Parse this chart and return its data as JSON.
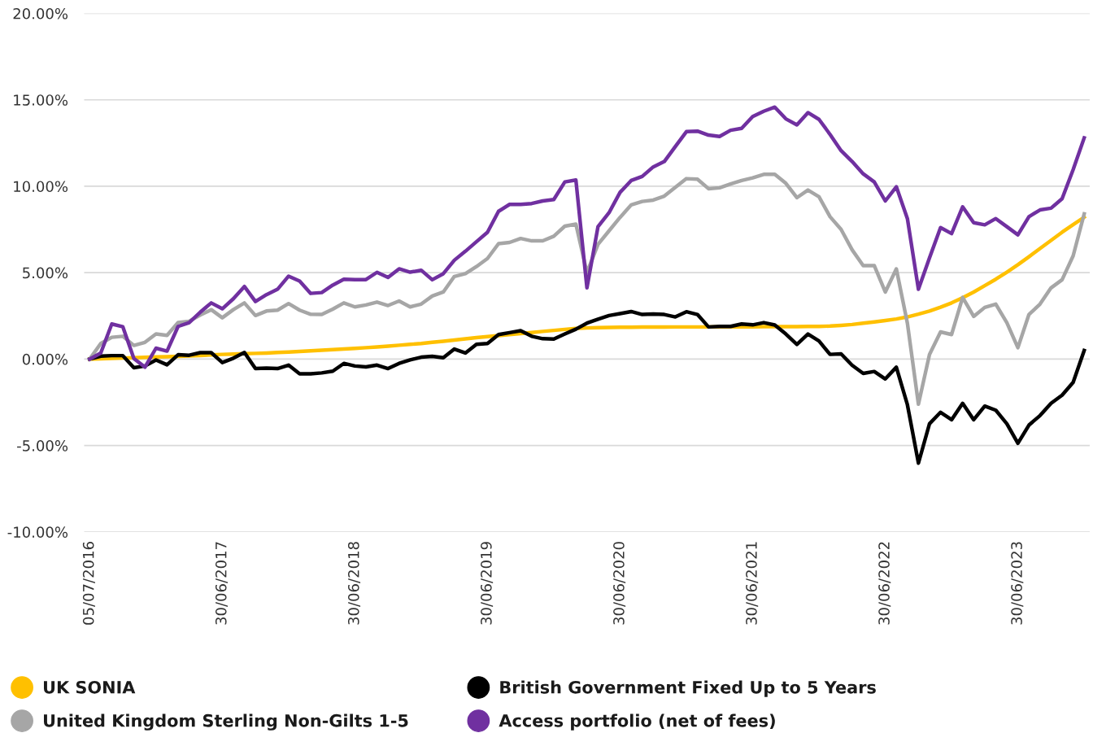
{
  "chart_data": {
    "type": "line",
    "categories": [
      "05/07/2016",
      null,
      null,
      null,
      null,
      null,
      null,
      null,
      null,
      null,
      null,
      null,
      "30/06/2017",
      null,
      null,
      null,
      null,
      null,
      null,
      null,
      null,
      null,
      null,
      null,
      "30/06/2018",
      null,
      null,
      null,
      null,
      null,
      null,
      null,
      null,
      null,
      null,
      null,
      "30/06/2019",
      null,
      null,
      null,
      null,
      null,
      null,
      null,
      null,
      null,
      null,
      null,
      "30/06/2020",
      null,
      null,
      null,
      null,
      null,
      null,
      null,
      null,
      null,
      null,
      null,
      "30/06/2021",
      null,
      null,
      null,
      null,
      null,
      null,
      null,
      null,
      null,
      null,
      null,
      "30/06/2022",
      null,
      null,
      null,
      null,
      null,
      null,
      null,
      null,
      null,
      null,
      null,
      "30/06/2023",
      null,
      null,
      null,
      null,
      null,
      null
    ],
    "ylim": [
      -10,
      20
    ],
    "yticks": [
      {
        "value": -10,
        "label": "-10.00%"
      },
      {
        "value": -5,
        "label": "-5.00%"
      },
      {
        "value": 0,
        "label": "0.00%"
      },
      {
        "value": 5,
        "label": "5.00%"
      },
      {
        "value": 10,
        "label": "10.00%"
      },
      {
        "value": 15,
        "label": "15.00%"
      },
      {
        "value": 20,
        "label": "20.00%"
      }
    ],
    "grid": "y",
    "legend": "bottom",
    "marker": "none",
    "line_style": "solid",
    "series": [
      {
        "name": "UK SONIA",
        "color": "#ffc000",
        "values": [
          0,
          0.02,
          0.04,
          0.06,
          0.08,
          0.1,
          0.12,
          0.14,
          0.16,
          0.18,
          0.21,
          0.24,
          0.27,
          0.29,
          0.31,
          0.33,
          0.35,
          0.38,
          0.41,
          0.44,
          0.48,
          0.51,
          0.55,
          0.58,
          0.62,
          0.66,
          0.7,
          0.75,
          0.8,
          0.85,
          0.9,
          0.97,
          1.03,
          1.1,
          1.17,
          1.24,
          1.3,
          1.36,
          1.42,
          1.48,
          1.54,
          1.6,
          1.66,
          1.72,
          1.77,
          1.8,
          1.82,
          1.83,
          1.84,
          1.84,
          1.85,
          1.85,
          1.85,
          1.86,
          1.86,
          1.86,
          1.86,
          1.87,
          1.87,
          1.87,
          1.87,
          1.88,
          1.88,
          1.88,
          1.88,
          1.89,
          1.89,
          1.91,
          1.95,
          2.0,
          2.08,
          2.15,
          2.23,
          2.32,
          2.44,
          2.6,
          2.78,
          3.0,
          3.25,
          3.55,
          3.88,
          4.25,
          4.62,
          5.03,
          5.46,
          5.92,
          6.4,
          6.87,
          7.34,
          7.78,
          8.21
        ]
      },
      {
        "name": "British Government Fixed Up to 5 Years",
        "color": "#000000",
        "values": [
          0,
          0.17,
          0.2,
          0.2,
          -0.5,
          -0.4,
          -0.05,
          -0.33,
          0.25,
          0.22,
          0.37,
          0.37,
          -0.2,
          0.05,
          0.38,
          -0.55,
          -0.52,
          -0.55,
          -0.35,
          -0.85,
          -0.85,
          -0.8,
          -0.7,
          -0.25,
          -0.4,
          -0.45,
          -0.35,
          -0.55,
          -0.25,
          -0.05,
          0.11,
          0.16,
          0.08,
          0.58,
          0.35,
          0.85,
          0.9,
          1.42,
          1.53,
          1.64,
          1.32,
          1.18,
          1.16,
          1.45,
          1.73,
          2.08,
          2.31,
          2.52,
          2.63,
          2.75,
          2.58,
          2.61,
          2.58,
          2.44,
          2.74,
          2.58,
          1.86,
          1.89,
          1.89,
          2.03,
          1.98,
          2.11,
          1.97,
          1.45,
          0.85,
          1.45,
          1.05,
          0.27,
          0.3,
          -0.36,
          -0.83,
          -0.72,
          -1.15,
          -0.47,
          -2.64,
          -6.02,
          -3.74,
          -3.08,
          -3.51,
          -2.56,
          -3.51,
          -2.72,
          -2.96,
          -3.74,
          -4.87,
          -3.82,
          -3.27,
          -2.56,
          -2.09,
          -1.35,
          0.5
        ]
      },
      {
        "name": "United Kingdom Sterling Non-Gilts 1-5",
        "color": "#a6a6a6",
        "values": [
          0,
          0.9,
          1.26,
          1.32,
          0.79,
          0.97,
          1.45,
          1.37,
          2.12,
          2.19,
          2.55,
          2.86,
          2.39,
          2.86,
          3.25,
          2.52,
          2.78,
          2.83,
          3.21,
          2.83,
          2.59,
          2.58,
          2.89,
          3.25,
          3.02,
          3.13,
          3.3,
          3.1,
          3.36,
          3.02,
          3.18,
          3.65,
          3.88,
          4.78,
          4.94,
          5.35,
          5.82,
          6.68,
          6.75,
          6.98,
          6.84,
          6.84,
          7.11,
          7.69,
          7.81,
          5.0,
          6.64,
          7.42,
          8.2,
          8.92,
          9.12,
          9.2,
          9.43,
          9.94,
          10.44,
          10.41,
          9.86,
          9.91,
          10.13,
          10.33,
          10.49,
          10.69,
          10.69,
          10.17,
          9.34,
          9.78,
          9.39,
          8.24,
          7.5,
          6.32,
          5.41,
          5.41,
          3.88,
          5.22,
          2.08,
          -2.61,
          0.27,
          1.57,
          1.42,
          3.57,
          2.47,
          2.99,
          3.18,
          2.11,
          0.66,
          2.58,
          3.18,
          4.12,
          4.59,
          5.97,
          8.4
        ]
      },
      {
        "name": "Access portfolio (net of fees)",
        "color": "#7030a0",
        "values": [
          0,
          0.35,
          2.03,
          1.87,
          0.03,
          -0.47,
          0.63,
          0.46,
          1.89,
          2.11,
          2.71,
          3.25,
          2.91,
          3.49,
          4.2,
          3.33,
          3.73,
          4.04,
          4.8,
          4.51,
          3.8,
          3.85,
          4.28,
          4.62,
          4.6,
          4.6,
          5.02,
          4.72,
          5.22,
          5.03,
          5.14,
          4.59,
          4.94,
          5.72,
          6.24,
          6.79,
          7.34,
          8.55,
          8.95,
          8.95,
          9.0,
          9.15,
          9.23,
          10.25,
          10.36,
          4.12,
          7.66,
          8.47,
          9.65,
          10.33,
          10.57,
          11.12,
          11.43,
          12.3,
          13.16,
          13.19,
          12.96,
          12.88,
          13.24,
          13.35,
          14.03,
          14.34,
          14.58,
          13.9,
          13.55,
          14.26,
          13.87,
          13.0,
          12.06,
          11.43,
          10.72,
          10.25,
          9.15,
          9.97,
          8.13,
          4.04,
          5.85,
          7.61,
          7.26,
          8.81,
          7.89,
          7.77,
          8.13,
          7.66,
          7.19,
          8.24,
          8.63,
          8.73,
          9.28,
          10.96,
          12.8
        ]
      }
    ]
  }
}
